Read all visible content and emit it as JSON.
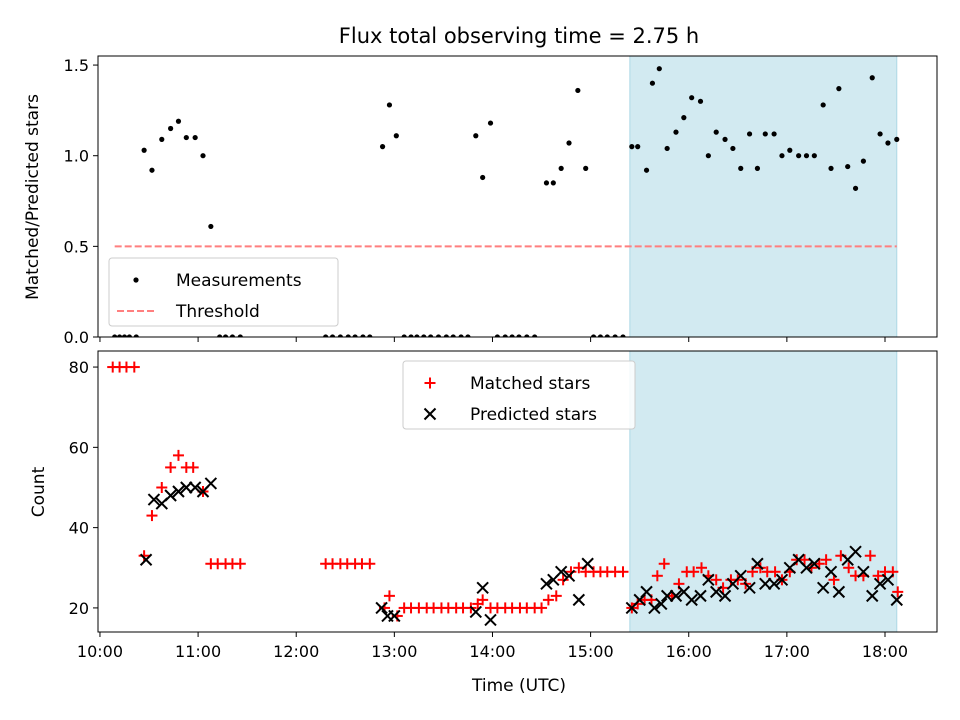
{
  "title": "Flux total observing time = 2.75 h",
  "highlight_color": "#add8e6",
  "chart_data": [
    {
      "type": "scatter",
      "panel": "top",
      "ylabel": "Matched/Predicted stars",
      "ylim": [
        0,
        1.55
      ],
      "yticks": [
        0.0,
        0.5,
        1.0,
        1.5
      ],
      "ytick_labels": [
        "0.0",
        "0.5",
        "1.0",
        "1.5"
      ],
      "xlim": [
        9.98,
        18.53
      ],
      "highlight_x": [
        15.4,
        18.12
      ],
      "legend_position": "lower-left",
      "series": [
        {
          "name": "Measurements",
          "color": "#000000",
          "marker": "dot",
          "x": [
            10.15,
            10.2,
            10.25,
            10.3,
            10.37,
            10.45,
            10.53,
            10.63,
            10.72,
            10.8,
            10.88,
            10.97,
            11.05,
            11.13,
            11.22,
            11.28,
            11.35,
            11.43,
            12.3,
            12.37,
            12.45,
            12.53,
            12.6,
            12.68,
            12.75,
            12.88,
            12.95,
            13.02,
            13.1,
            13.17,
            13.23,
            13.3,
            13.37,
            13.45,
            13.53,
            13.6,
            13.68,
            13.75,
            13.83,
            13.9,
            13.98,
            14.05,
            14.13,
            14.2,
            14.27,
            14.35,
            14.43,
            14.55,
            14.62,
            14.7,
            14.78,
            14.87,
            14.95,
            15.03,
            15.1,
            15.17,
            15.25,
            15.33,
            15.42,
            15.48,
            15.57,
            15.63,
            15.7,
            15.78,
            15.87,
            15.95,
            16.03,
            16.12,
            16.2,
            16.28,
            16.37,
            16.45,
            16.53,
            16.62,
            16.7,
            16.78,
            16.87,
            16.95,
            17.03,
            17.12,
            17.2,
            17.28,
            17.37,
            17.45,
            17.53,
            17.62,
            17.7,
            17.78,
            17.87,
            17.95,
            18.03,
            18.12
          ],
          "y": [
            0.0,
            0.0,
            0.0,
            0.0,
            0.0,
            1.03,
            0.92,
            1.09,
            1.15,
            1.19,
            1.1,
            1.1,
            1.0,
            0.61,
            0.0,
            0.0,
            0.0,
            0.0,
            0.0,
            0.0,
            0.0,
            0.0,
            0.0,
            0.0,
            0.0,
            1.05,
            1.28,
            1.11,
            0.0,
            0.0,
            0.0,
            0.0,
            0.0,
            0.0,
            0.0,
            0.0,
            0.0,
            0.0,
            1.11,
            0.88,
            1.18,
            0.0,
            0.0,
            0.0,
            0.0,
            0.0,
            0.0,
            0.85,
            0.85,
            0.93,
            1.07,
            1.36,
            0.93,
            0.0,
            0.0,
            0.0,
            0.0,
            0.0,
            1.05,
            1.05,
            0.92,
            1.4,
            1.48,
            1.04,
            1.13,
            1.21,
            1.32,
            1.3,
            1.0,
            1.13,
            1.09,
            1.04,
            0.93,
            1.12,
            0.93,
            1.12,
            1.12,
            1.0,
            1.03,
            1.0,
            1.0,
            1.0,
            1.28,
            0.93,
            1.37,
            0.94,
            0.82,
            0.97,
            1.43,
            1.12,
            1.07,
            1.09
          ]
        },
        {
          "name": "Threshold",
          "color": "#ff7f7f",
          "style": "dashed",
          "x": [
            10.15,
            18.12
          ],
          "y": [
            0.5,
            0.5
          ]
        }
      ]
    },
    {
      "type": "scatter",
      "panel": "bottom",
      "ylabel": "Count",
      "xlabel": "Time (UTC)",
      "ylim": [
        14,
        84
      ],
      "yticks": [
        20,
        40,
        60,
        80
      ],
      "xlim": [
        9.98,
        18.53
      ],
      "xticks": [
        10,
        11,
        12,
        13,
        14,
        15,
        16,
        17,
        18
      ],
      "xtick_labels": [
        "10:00",
        "11:00",
        "12:00",
        "13:00",
        "14:00",
        "15:00",
        "16:00",
        "17:00",
        "18:00"
      ],
      "highlight_x": [
        15.4,
        18.12
      ],
      "legend_position": "upper-center",
      "series": [
        {
          "name": "Matched stars",
          "color": "#ff0000",
          "marker": "plus",
          "x": [
            10.13,
            10.2,
            10.27,
            10.35,
            10.45,
            10.53,
            10.63,
            10.72,
            10.8,
            10.88,
            10.95,
            11.05,
            11.13,
            11.2,
            11.28,
            11.35,
            11.43,
            12.3,
            12.37,
            12.45,
            12.52,
            12.6,
            12.67,
            12.75,
            12.9,
            12.95,
            13.03,
            13.1,
            13.17,
            13.25,
            13.33,
            13.4,
            13.48,
            13.55,
            13.63,
            13.7,
            13.78,
            13.85,
            13.9,
            13.98,
            14.05,
            14.13,
            14.2,
            14.28,
            14.35,
            14.43,
            14.5,
            14.57,
            14.65,
            14.72,
            14.8,
            14.88,
            14.95,
            15.03,
            15.1,
            15.17,
            15.25,
            15.33,
            15.42,
            15.48,
            15.55,
            15.62,
            15.68,
            15.75,
            15.83,
            15.9,
            15.98,
            16.05,
            16.13,
            16.2,
            16.28,
            16.35,
            16.43,
            16.5,
            16.58,
            16.65,
            16.73,
            16.8,
            16.88,
            16.95,
            17.03,
            17.1,
            17.18,
            17.25,
            17.33,
            17.4,
            17.48,
            17.55,
            17.63,
            17.7,
            17.78,
            17.85,
            17.93,
            18.0,
            18.08,
            18.13
          ],
          "y": [
            80,
            80,
            80,
            80,
            33,
            43,
            50,
            55,
            58,
            55,
            55,
            49,
            31,
            31,
            31,
            31,
            31,
            31,
            31,
            31,
            31,
            31,
            31,
            31,
            20,
            23,
            18,
            20,
            20,
            20,
            20,
            20,
            20,
            20,
            20,
            20,
            20,
            21,
            22,
            20,
            20,
            20,
            20,
            20,
            20,
            20,
            20,
            22,
            23,
            27,
            29,
            30,
            29,
            29,
            29,
            29,
            29,
            29,
            20,
            21,
            22,
            22,
            28,
            31,
            23,
            26,
            29,
            29,
            30,
            28,
            27,
            25,
            27,
            27,
            26,
            29,
            30,
            29,
            29,
            27,
            29,
            32,
            32,
            30,
            31,
            32,
            27,
            33,
            30,
            28,
            28,
            33,
            28,
            29,
            29,
            24
          ]
        },
        {
          "name": "Predicted stars",
          "color": "#000000",
          "marker": "x",
          "x": [
            10.47,
            10.55,
            10.63,
            10.72,
            10.8,
            10.88,
            10.97,
            11.05,
            11.13,
            12.87,
            12.93,
            13.0,
            13.83,
            13.9,
            13.98,
            14.55,
            14.62,
            14.7,
            14.78,
            14.88,
            14.97,
            15.42,
            15.5,
            15.57,
            15.65,
            15.72,
            15.78,
            15.87,
            15.95,
            16.03,
            16.12,
            16.2,
            16.28,
            16.37,
            16.45,
            16.53,
            16.62,
            16.7,
            16.78,
            16.87,
            16.95,
            17.03,
            17.12,
            17.2,
            17.28,
            17.37,
            17.45,
            17.53,
            17.62,
            17.7,
            17.78,
            17.87,
            17.95,
            18.03,
            18.12
          ],
          "y": [
            32,
            47,
            46,
            48,
            49,
            50,
            50,
            49,
            51,
            20,
            18,
            18,
            19,
            25,
            17,
            26,
            27,
            29,
            28,
            22,
            31,
            20,
            22,
            24,
            20,
            21,
            23,
            23,
            24,
            22,
            23,
            27,
            24,
            23,
            26,
            28,
            25,
            31,
            26,
            26,
            27,
            30,
            32,
            30,
            31,
            25,
            29,
            24,
            32,
            34,
            29,
            23,
            26,
            27,
            22
          ]
        }
      ]
    }
  ]
}
